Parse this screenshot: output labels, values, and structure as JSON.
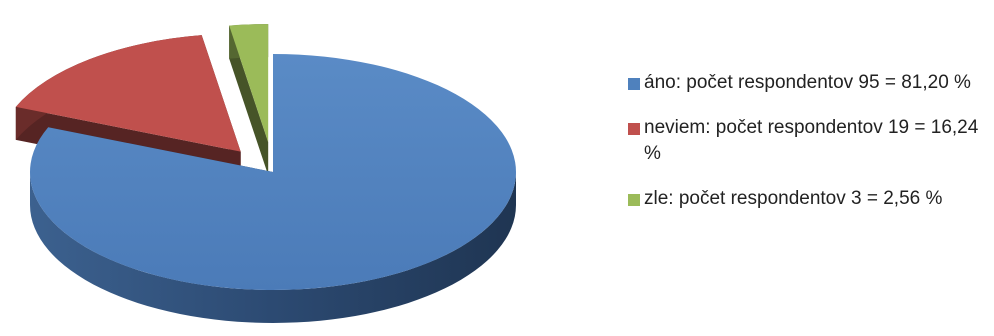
{
  "chart_data": {
    "type": "pie",
    "categories": [
      "áno",
      "neviem",
      "zle"
    ],
    "values": [
      95,
      19,
      3
    ],
    "percentages": [
      81.2,
      16.24,
      2.56
    ],
    "colors": [
      "#4f81bd",
      "#c0504d",
      "#9bbb59"
    ],
    "legend_labels": [
      "áno: počet respondentov 95 = 81,20 %",
      "neviem: počet respondentov 19 = 16,24 %",
      "zle: počet respondentov 3 = 2,56 %"
    ],
    "legend_position": "right",
    "style": "3d-exploded"
  }
}
